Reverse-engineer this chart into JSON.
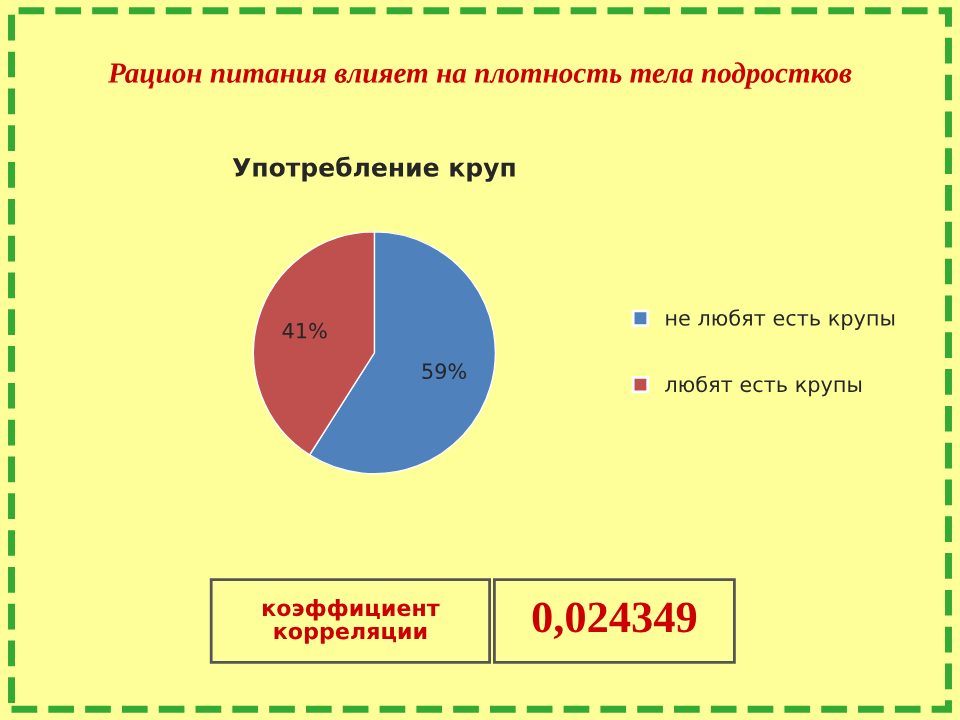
{
  "chart_data": {
    "type": "pie",
    "title": "Рацион питания влияет на плотность тела подростков",
    "subtitle": "Употребление круп",
    "categories": [
      "не любят есть крупы",
      "любят есть крупы"
    ],
    "values": [
      59,
      41
    ],
    "colors": [
      "#4f81bd",
      "#c0504d"
    ],
    "value_labels": [
      "59%",
      "41%"
    ],
    "legend": "right",
    "annotations": [
      "коэффициент корреляции",
      "0,024349"
    ]
  }
}
